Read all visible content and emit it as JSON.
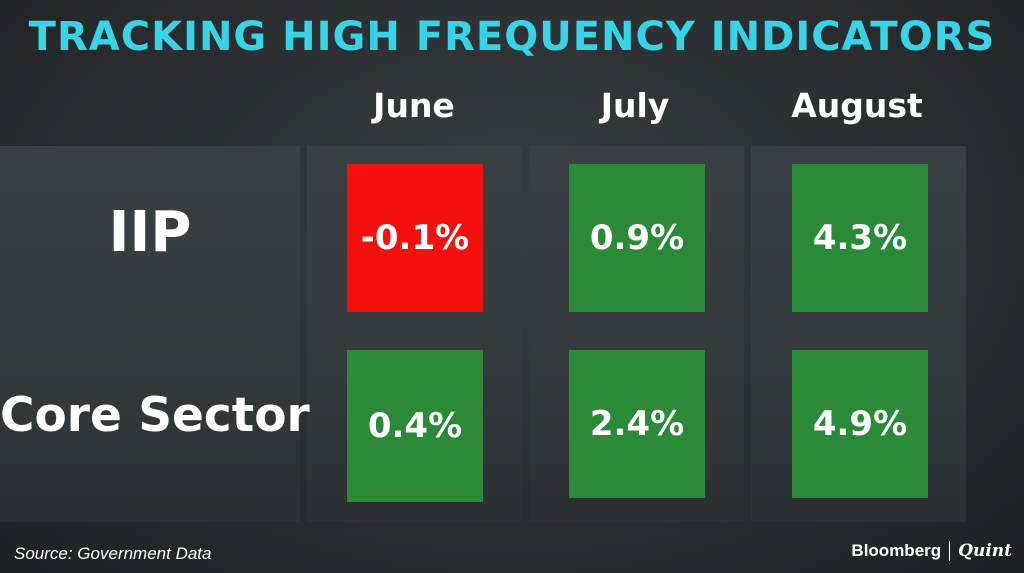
{
  "title": "TRACKING HIGH FREQUENCY INDICATORS",
  "chart_data": {
    "type": "table",
    "columns": [
      "June",
      "July",
      "August"
    ],
    "rows": [
      {
        "label": "IIP",
        "values": [
          -0.1,
          0.9,
          4.3
        ],
        "display": [
          "-0.1%",
          "0.9%",
          "4.3%"
        ]
      },
      {
        "label": "Core Sector",
        "values": [
          0.4,
          2.4,
          4.9
        ],
        "display": [
          "0.4%",
          "2.4%",
          "4.9%"
        ]
      }
    ],
    "unit": "%"
  },
  "colors": {
    "title": "#37d3e6",
    "positive": "#2a8a37",
    "negative": "#f4110d",
    "background": "#2e3235"
  },
  "footer": {
    "source": "Source: Government Data",
    "brand_primary": "Bloomberg",
    "brand_secondary": "Quint"
  }
}
